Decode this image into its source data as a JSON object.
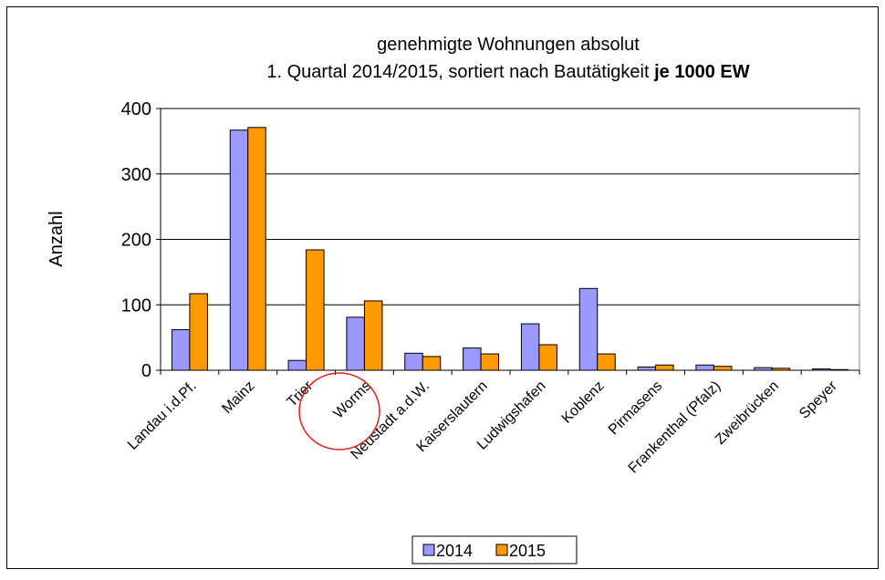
{
  "chart_data": {
    "type": "bar",
    "title": "genehmigte Wohnungen absolut",
    "subtitle": "1. Quartal 2014/2015, sortiert nach Bautätigkeit",
    "subtitle_emphasis": "je 1000 EW",
    "ylabel": "Anzahl",
    "categories": [
      "Landau i.d.Pf.",
      "Mainz",
      "Trier",
      "Worms",
      "Neustadt a.d.W.",
      "Kaiserslautern",
      "Ludwigshafen",
      "Koblenz",
      "Pirmasens",
      "Frankenthal (Pfalz)",
      "Zweibrücken",
      "Speyer"
    ],
    "series": [
      {
        "name": "2014",
        "color": "#9999ff",
        "values": [
          62,
          367,
          15,
          81,
          26,
          34,
          71,
          125,
          5,
          8,
          4,
          2
        ]
      },
      {
        "name": "2015",
        "color": "#ff9900",
        "values": [
          117,
          371,
          184,
          106,
          21,
          25,
          39,
          25,
          8,
          6,
          3,
          1
        ]
      }
    ],
    "ylim": [
      0,
      400
    ],
    "yticks": [
      0,
      100,
      200,
      300,
      400
    ],
    "grid": true,
    "legend": "bottom"
  }
}
